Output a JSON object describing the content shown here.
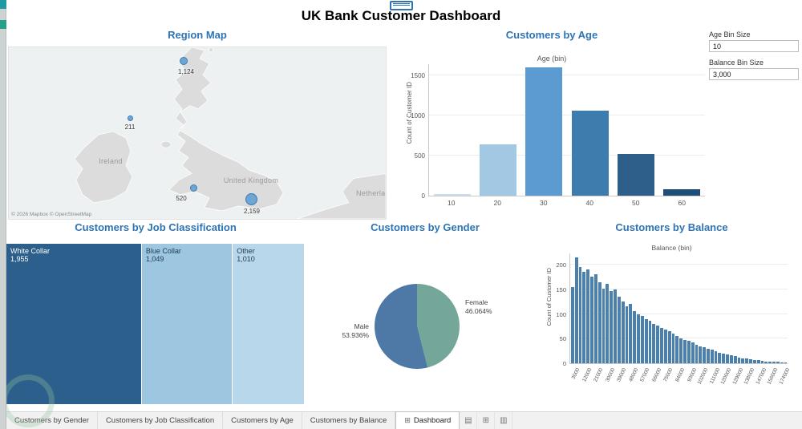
{
  "header": {
    "title": "UK Bank Customer Dashboard"
  },
  "parameters": {
    "age_bin": {
      "label": "Age Bin Size",
      "value": "10"
    },
    "balance_bin": {
      "label": "Balance Bin Size",
      "value": "3,000"
    }
  },
  "map": {
    "title": "Region Map",
    "attribution": "© 2026 Mapbox © OpenStreetMap",
    "labels": {
      "ireland": "Ireland",
      "uk": "United Kingdom",
      "netherlands": "Netherla"
    },
    "bubbles": [
      {
        "region": "Scotland",
        "value": "1,124"
      },
      {
        "region": "Northern Ireland",
        "value": "211"
      },
      {
        "region": "Wales",
        "value": "520"
      },
      {
        "region": "England",
        "value": "2,159"
      }
    ]
  },
  "chart_data": [
    {
      "id": "age",
      "type": "bar",
      "title": "Customers by Age",
      "xlabel": "Age (bin)",
      "ylabel": "Count of Customer ID",
      "categories": [
        "10",
        "20",
        "30",
        "40",
        "50",
        "60"
      ],
      "values": [
        25,
        640,
        1600,
        1060,
        520,
        80
      ],
      "colors": [
        "#c9ddf0",
        "#a2c8e4",
        "#5b9bd1",
        "#3e7cad",
        "#2d5f8a",
        "#1f4e79"
      ],
      "ylim": [
        0,
        1650
      ],
      "yticks": [
        0,
        500,
        1000,
        1500
      ],
      "grid": true,
      "legend": "none"
    },
    {
      "id": "job",
      "type": "treemap",
      "title": "Customers by Job Classification",
      "items": [
        {
          "label": "White Collar",
          "value": "1,955",
          "weight": 1955,
          "color": "#2c5f8b",
          "text_color": "#ffffff"
        },
        {
          "label": "Blue Collar",
          "value": "1,049",
          "weight": 1049,
          "color": "#9dc6e0",
          "text_color": "#1e3a52"
        },
        {
          "label": "Other",
          "value": "1,010",
          "weight": 1010,
          "color": "#b9d7ea",
          "text_color": "#1e3a52"
        }
      ]
    },
    {
      "id": "gender",
      "type": "pie",
      "title": "Customers by Gender",
      "slices": [
        {
          "label": "Female",
          "pct": 46.064,
          "pct_label": "46.064%",
          "color": "#74a79a"
        },
        {
          "label": "Male",
          "pct": 53.936,
          "pct_label": "53.936%",
          "color": "#4e79a7"
        }
      ]
    },
    {
      "id": "balance",
      "type": "bar",
      "title": "Customers by Balance",
      "xlabel": "Balance (bin)",
      "ylabel": "Count of Customer ID",
      "bar_color": "#4b80ad",
      "ylim": [
        0,
        225
      ],
      "yticks": [
        0,
        50,
        100,
        150,
        200
      ],
      "x_tick_labels": [
        "3000",
        "12000",
        "21000",
        "30000",
        "39000",
        "48000",
        "57000",
        "66000",
        "75000",
        "84000",
        "93000",
        "102000",
        "111000",
        "120000",
        "129000",
        "138000",
        "147000",
        "156000",
        "174000"
      ],
      "values": [
        155,
        215,
        196,
        186,
        190,
        176,
        181,
        165,
        151,
        161,
        146,
        150,
        136,
        126,
        116,
        120,
        106,
        100,
        96,
        90,
        86,
        80,
        76,
        72,
        68,
        65,
        60,
        56,
        50,
        48,
        45,
        42,
        38,
        35,
        32,
        30,
        27,
        25,
        22,
        20,
        18,
        16,
        14,
        12,
        10,
        9,
        8,
        7,
        6,
        5,
        4,
        4,
        3,
        3,
        2,
        2
      ]
    }
  ],
  "tabs": {
    "items": [
      {
        "label": "Customers by Gender",
        "active": false
      },
      {
        "label": "Customers by Job Classification",
        "active": false
      },
      {
        "label": "Customers by Age",
        "active": false
      },
      {
        "label": "Customers by Balance",
        "active": false
      },
      {
        "label": "Dashboard",
        "active": true,
        "icon": "⊞"
      }
    ],
    "new_buttons": [
      {
        "name": "new-worksheet",
        "glyph": "▤"
      },
      {
        "name": "new-dashboard",
        "glyph": "⊞"
      },
      {
        "name": "new-story",
        "glyph": "▥"
      }
    ]
  }
}
